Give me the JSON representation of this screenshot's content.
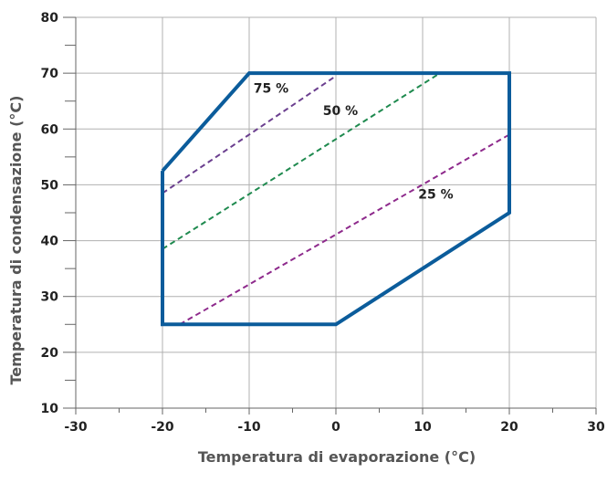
{
  "chart_data": {
    "type": "line",
    "xlabel": "Temperatura di evaporazione (°C)",
    "ylabel": "Temperatura di condensazione (°C)",
    "xlim": [
      -30,
      30
    ],
    "ylim": [
      10,
      80
    ],
    "x_ticks": [
      -30,
      -20,
      -10,
      0,
      10,
      20,
      30
    ],
    "y_ticks": [
      10,
      20,
      30,
      40,
      50,
      60,
      70,
      80
    ],
    "grid": true,
    "colors": {
      "envelope": "#0b5c9b",
      "line_75": "#6b3f8f",
      "line_50": "#1f8a4f",
      "line_25": "#8e2a8c",
      "grid": "#b0b0b0",
      "axis": "#666666"
    },
    "envelope": {
      "x": [
        -20,
        -10,
        20,
        20,
        0,
        -20,
        -20
      ],
      "y": [
        52.5,
        70,
        70,
        45,
        25,
        25,
        52.5
      ]
    },
    "series": [
      {
        "label": "75 %",
        "x": [
          -20,
          0
        ],
        "y": [
          48.5,
          69.5
        ],
        "label_pos": {
          "x": -9.5,
          "y": 66.5
        }
      },
      {
        "label": "50 %",
        "x": [
          -20,
          12
        ],
        "y": [
          38.5,
          70
        ],
        "label_pos": {
          "x": -1.5,
          "y": 62.5
        }
      },
      {
        "label": "25 %",
        "x": [
          -18,
          20
        ],
        "y": [
          25,
          59
        ],
        "label_pos": {
          "x": 9.5,
          "y": 47.5
        }
      }
    ]
  }
}
